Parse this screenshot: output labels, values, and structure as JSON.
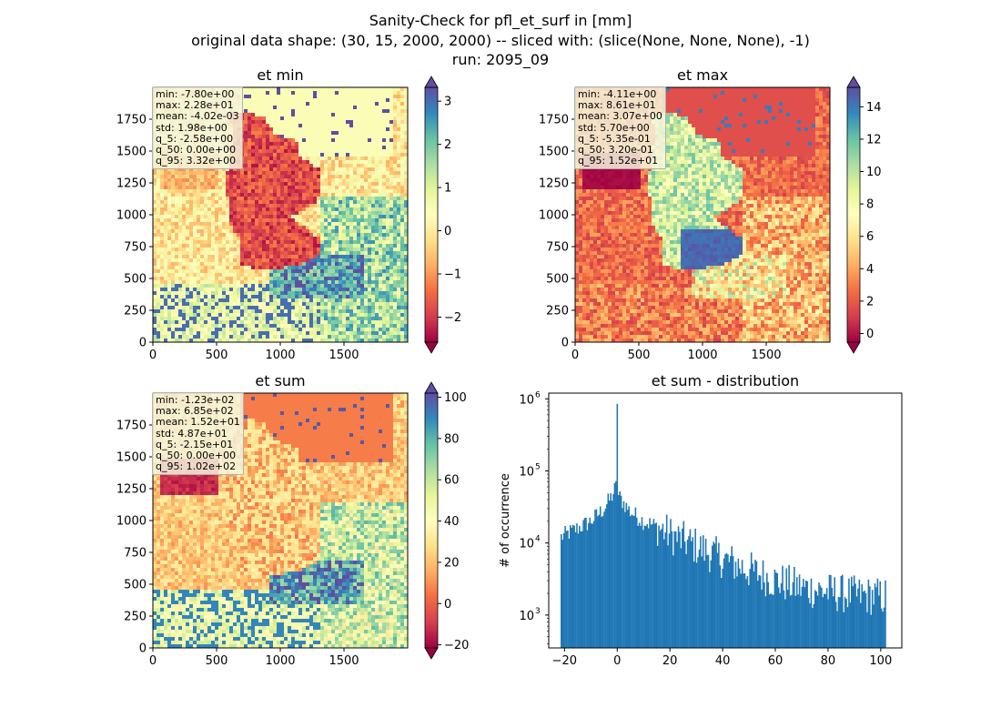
{
  "figure": {
    "title_lines": [
      "Sanity-Check for pfl_et_surf in [mm]",
      "original data shape: (30, 15, 2000, 2000) -- sliced with: (slice(None, None, None), -1)",
      "run: 2095_09"
    ]
  },
  "colormap": {
    "name": "Spectral",
    "stops": [
      "#9e0142",
      "#d53e4f",
      "#f46d43",
      "#fdae61",
      "#fee08b",
      "#ffffbf",
      "#e6f598",
      "#abdda4",
      "#66c2a5",
      "#3288bd",
      "#5e4fa2"
    ]
  },
  "colors": {
    "bars": "#1f77b4",
    "sea": "#ffffbf"
  },
  "chart_data": [
    {
      "type": "heatmap",
      "title": "et min",
      "xlim": [
        0,
        2000
      ],
      "ylim": [
        0,
        2000
      ],
      "xticks": [
        0,
        500,
        1000,
        1500
      ],
      "yticks": [
        0,
        250,
        500,
        750,
        1000,
        1250,
        1500,
        1750
      ],
      "colorbar": {
        "vmin": -2.58,
        "vmax": 3.32,
        "ticks": [
          -2,
          -1,
          0,
          1,
          2,
          3
        ],
        "tick_labels": [
          "−2",
          "−1",
          "0",
          "1",
          "2",
          "3"
        ],
        "extend": "both"
      },
      "stats_box": [
        "min: -7.80e+00",
        "max: 2.28e+01",
        "mean: -4.02e-03",
        "std: 1.98e+00",
        "q_5: -2.58e+00",
        "q_50: 0.00e+00",
        "q_95: 3.32e+00"
      ]
    },
    {
      "type": "heatmap",
      "title": "et max",
      "xlim": [
        0,
        2000
      ],
      "ylim": [
        0,
        2000
      ],
      "xticks": [
        0,
        500,
        1000,
        1500
      ],
      "yticks": [
        0,
        250,
        500,
        750,
        1000,
        1250,
        1500,
        1750
      ],
      "colorbar": {
        "vmin": -0.535,
        "vmax": 15.2,
        "ticks": [
          0,
          2,
          4,
          6,
          8,
          10,
          12,
          14
        ],
        "tick_labels": [
          "0",
          "2",
          "4",
          "6",
          "8",
          "10",
          "12",
          "14"
        ],
        "extend": "both"
      },
      "stats_box": [
        "min: -4.11e+00",
        "max: 8.61e+01",
        "mean: 3.07e+00",
        "std: 5.70e+00",
        "q_5: -5.35e-01",
        "q_50: 3.20e-01",
        "q_95: 1.52e+01"
      ]
    },
    {
      "type": "heatmap",
      "title": "et sum",
      "xlim": [
        0,
        2000
      ],
      "ylim": [
        0,
        2000
      ],
      "xticks": [
        0,
        500,
        1000,
        1500
      ],
      "yticks": [
        0,
        250,
        500,
        750,
        1000,
        1250,
        1500,
        1750
      ],
      "colorbar": {
        "vmin": -21.5,
        "vmax": 102,
        "ticks": [
          -20,
          0,
          20,
          40,
          60,
          80,
          100
        ],
        "tick_labels": [
          "−20",
          "0",
          "20",
          "40",
          "60",
          "80",
          "100"
        ],
        "extend": "both"
      },
      "stats_box": [
        "min: -1.23e+02",
        "max: 6.85e+02",
        "mean: 1.52e+01",
        "std: 4.87e+01",
        "q_5: -2.15e+01",
        "q_50: 0.00e+00",
        "q_95: 1.02e+02"
      ]
    },
    {
      "type": "bar",
      "title": "et sum - distribution",
      "ylabel": "# of occurrence",
      "yscale": "log",
      "xlim": [
        -26,
        108
      ],
      "ylim": [
        350,
        1200000
      ],
      "xticks": [
        -20,
        0,
        20,
        40,
        60,
        80,
        100
      ],
      "xtick_labels": [
        "−20",
        "0",
        "20",
        "40",
        "60",
        "80",
        "100"
      ],
      "yticks": [
        1000,
        10000,
        100000,
        1000000
      ],
      "ytick_labels": [
        [
          "10",
          "3"
        ],
        [
          "10",
          "4"
        ],
        [
          "10",
          "5"
        ],
        [
          "10",
          "6"
        ]
      ],
      "bin_range": [
        -21.5,
        102
      ],
      "profile_points": [
        [
          -21.5,
          12000
        ],
        [
          -15,
          16000
        ],
        [
          -10,
          20000
        ],
        [
          -5,
          30000
        ],
        [
          -2,
          45000
        ],
        [
          -0.5,
          60000
        ],
        [
          0.5,
          45000
        ],
        [
          5,
          27000
        ],
        [
          10,
          20000
        ],
        [
          15,
          17000
        ],
        [
          20,
          13000
        ],
        [
          30,
          9000
        ],
        [
          40,
          6000
        ],
        [
          50,
          4200
        ],
        [
          60,
          3000
        ],
        [
          70,
          2400
        ],
        [
          80,
          2100
        ],
        [
          90,
          1900
        ],
        [
          100,
          1800
        ],
        [
          102,
          1800
        ]
      ],
      "peak": {
        "x": 0,
        "value": 850000
      },
      "notes": "histogram values approximated from the log-scaled y axis"
    }
  ]
}
